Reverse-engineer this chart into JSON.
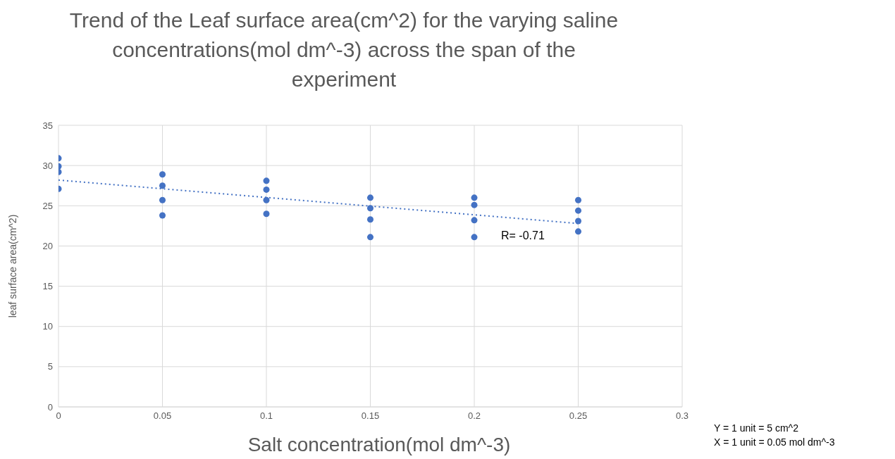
{
  "chart_data": {
    "type": "scatter",
    "title": "Trend of the Leaf surface area(cm^2) for the varying saline concentrations(mol dm^-3) across the span of the experiment",
    "xlabel": "Salt concentration(mol dm^-3)",
    "ylabel": "leaf surface area(cm^2)",
    "series": [
      {
        "color": "#4472c4",
        "marker": "circle",
        "x": [
          0,
          0,
          0,
          0,
          0.05,
          0.05,
          0.05,
          0.05,
          0.1,
          0.1,
          0.1,
          0.1,
          0.15,
          0.15,
          0.15,
          0.15,
          0.2,
          0.2,
          0.2,
          0.2,
          0.25,
          0.25,
          0.25,
          0.25
        ],
        "values": [
          30.9,
          29.9,
          29.2,
          27.1,
          28.9,
          27.5,
          25.7,
          23.8,
          28.1,
          27.0,
          25.7,
          24.0,
          26.0,
          24.7,
          23.3,
          21.1,
          26.0,
          25.1,
          23.2,
          21.1,
          25.7,
          24.4,
          23.1,
          21.8
        ]
      },
      {
        "type": "line",
        "color": "#4472c4",
        "line_style": "dotted",
        "marker": "none",
        "x": [
          0,
          0.25
        ],
        "values": [
          28.2,
          22.8
        ]
      }
    ],
    "annotations": [
      "R= -0.71",
      "Y = 1 unit = 5 cm^2",
      "X = 1 unit = 0.05 mol dm^-3"
    ],
    "xlim": [
      0,
      0.3
    ],
    "xticks": [
      0,
      0.05,
      0.1,
      0.15,
      0.2,
      0.25,
      0.3
    ],
    "ylim": [
      0,
      35
    ],
    "yticks": [
      0,
      5,
      10,
      15,
      20,
      25,
      30,
      35
    ],
    "grid": true,
    "legend": false
  }
}
